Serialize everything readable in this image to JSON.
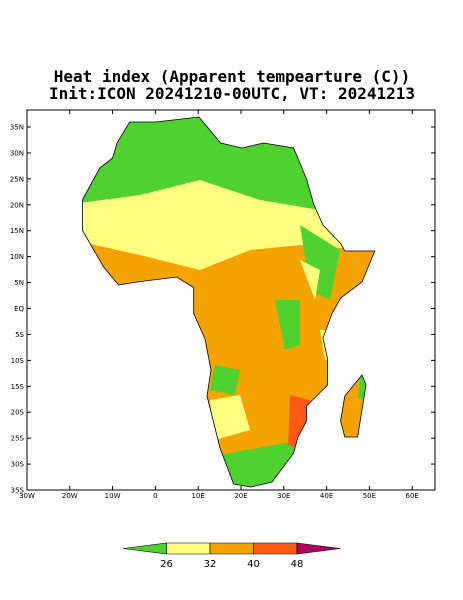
{
  "title": [
    "Heat index (Apparent tempearture (C))",
    "Init:ICON 20241210-00UTC, VT: 20241213"
  ],
  "lat_labels": [
    "35N",
    "30N",
    "25N",
    "20N",
    "15N",
    "10N",
    "5N",
    "EQ",
    "5S",
    "10S",
    "15S",
    "20S",
    "25S",
    "30S",
    "35S"
  ],
  "lon_labels": [
    "30W",
    "20W",
    "10W",
    "0",
    "10E",
    "20E",
    "30E",
    "40E",
    "50E",
    "60E"
  ],
  "colorbar": {
    "colors": [
      "#4fd12f",
      "#ffff80",
      "#f5a300",
      "#ff5a14",
      "#b3005e"
    ],
    "labels": [
      26,
      32,
      40,
      48
    ]
  }
}
